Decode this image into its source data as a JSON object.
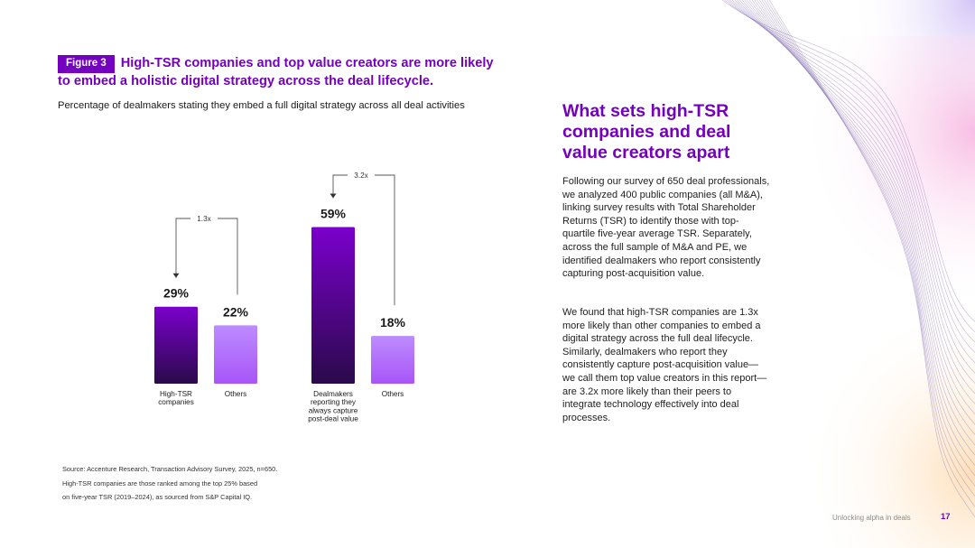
{
  "figure": {
    "tag": "Figure 3",
    "title": "High-TSR companies and top value creators are more likely to embed a holistic digital strategy across the deal lifecycle.",
    "subtitle": "Percentage of dealmakers stating they embed a full digital strategy across all deal activities"
  },
  "colors": {
    "accent": "#7500c0",
    "bar_primary_top": "#7a00cc",
    "bar_primary_bottom": "#2a0a4a",
    "bar_secondary_top": "#bd8cff",
    "bar_secondary_bottom": "#a855f7"
  },
  "chart_data": {
    "type": "bar",
    "unit": "%",
    "ylim": [
      0,
      100
    ],
    "grid": false,
    "groups": [
      {
        "comparison": "1.3x",
        "categories": [
          "High-TSR\ncompanies",
          "Others"
        ],
        "values": [
          29,
          22
        ],
        "data_labels": [
          "29%",
          "22%"
        ]
      },
      {
        "comparison": "3.2x",
        "categories": [
          "Dealmakers\nreporting they\nalways capture\npost-deal value",
          "Others"
        ],
        "values": [
          59,
          18
        ],
        "data_labels": [
          "59%",
          "18%"
        ]
      }
    ]
  },
  "source": {
    "lines": [
      "Source: Accenture Research, Transaction Advisory Survey, 2025, n=650.",
      "High-TSR companies are those ranked among the top 25% based",
      "on five-year TSR (2019–2024), as sourced from S&P Capital IQ."
    ]
  },
  "sidebar": {
    "heading": "What sets high-TSR companies and deal value creators apart",
    "paragraph1": "Following our survey of 650 deal professionals, we analyzed 400 public companies (all M&A), linking survey results with Total Shareholder Returns (TSR) to identify those with top-quartile five-year average TSR. Separately, across the full sample of M&A and PE, we identified dealmakers who report consistently capturing post-acquisition value.",
    "paragraph2": "We found that high-TSR companies are 1.3x more likely than other companies to embed a digital strategy across the full deal lifecycle. Similarly, dealmakers who report they consistently capture post-acquisition value—we call them top value creators in this report—are 3.2x more likely than their peers to integrate technology effectively into deal processes."
  },
  "footer": {
    "title": "Unlocking alpha in deals",
    "page": "17"
  }
}
